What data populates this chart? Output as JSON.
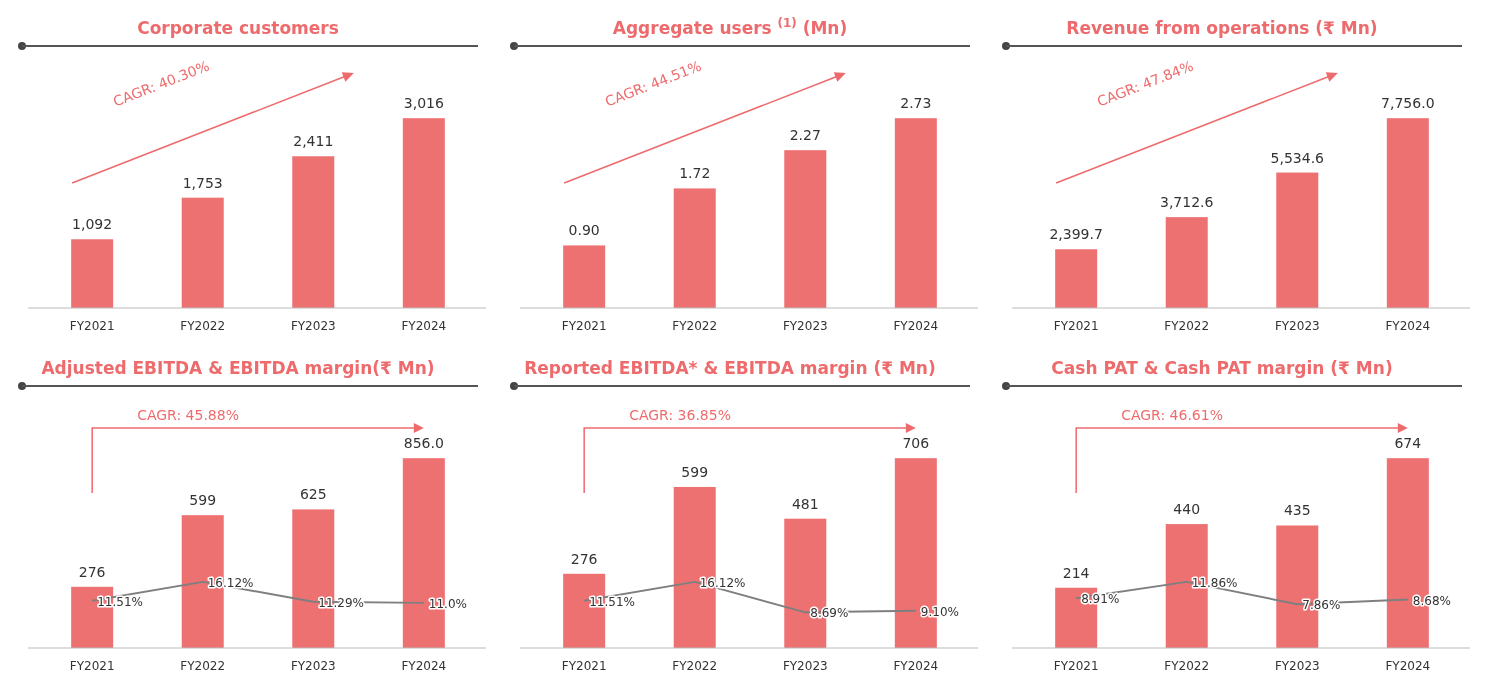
{
  "chart_data": [
    {
      "type": "bar",
      "title": "Corporate customers",
      "categories": [
        "FY2021",
        "FY2022",
        "FY2023",
        "FY2024"
      ],
      "annotations": [
        "CAGR: 40.30%"
      ],
      "series": [
        {
          "color": "#ee7172",
          "values": [
            1092,
            1753,
            2411,
            3016
          ],
          "value_labels": [
            "1,092",
            "1,753",
            "2,411",
            "3,016"
          ]
        }
      ]
    },
    {
      "type": "bar",
      "title": "Aggregate users $^{(1)}$ (Mn)",
      "categories": [
        "FY2021",
        "FY2022",
        "FY2023",
        "FY2024"
      ],
      "annotations": [
        "CAGR: 44.51%"
      ],
      "series": [
        {
          "color": "#ee7172",
          "values": [
            0.9,
            1.72,
            2.27,
            2.73
          ],
          "value_labels": [
            "0.90",
            "1.72",
            "2.27",
            "2.73"
          ]
        }
      ]
    },
    {
      "type": "bar",
      "title": "Revenue from operations (₹ Mn)",
      "categories": [
        "FY2021",
        "FY2022",
        "FY2023",
        "FY2024"
      ],
      "annotations": [
        "CAGR: 47.84%"
      ],
      "series": [
        {
          "color": "#ee7172",
          "values": [
            2399.7,
            3712.6,
            5534.6,
            7756.0
          ],
          "value_labels": [
            "2,399.7",
            "3,712.6",
            "5,534.6",
            "7,756.0"
          ]
        }
      ]
    },
    {
      "type": "bar",
      "title": "Adjusted EBITDA & EBITDA margin(₹ Mn)",
      "categories": [
        "FY2021",
        "FY2022",
        "FY2023",
        "FY2024"
      ],
      "annotations": [
        "CAGR: 45.88%"
      ],
      "series": [
        {
          "color": "#ee7172",
          "values": [
            276,
            599,
            625,
            856.0
          ],
          "value_labels": [
            "276",
            "599",
            "625",
            "856.0"
          ]
        },
        {
          "type": "line",
          "axis": "y2",
          "color": "#7f7f7f",
          "marker": "none",
          "values": [
            11.51,
            16.12,
            11.29,
            11.0
          ],
          "value_labels": [
            "11.51%",
            "16.12%",
            "11.29%",
            "11.0%"
          ]
        }
      ]
    },
    {
      "type": "bar",
      "title": "Reported EBITDA* & EBITDA margin (₹ Mn)",
      "categories": [
        "FY2021",
        "FY2022",
        "FY2023",
        "FY2024"
      ],
      "annotations": [
        "CAGR: 36.85%"
      ],
      "series": [
        {
          "color": "#ee7172",
          "values": [
            276,
            599,
            481,
            706
          ],
          "value_labels": [
            "276",
            "599",
            "481",
            "706"
          ]
        },
        {
          "type": "line",
          "axis": "y2",
          "color": "#7f7f7f",
          "marker": "none",
          "values": [
            11.51,
            16.12,
            8.69,
            9.1
          ],
          "value_labels": [
            "11.51%",
            "16.12%",
            "8.69%",
            "9.10%"
          ]
        }
      ]
    },
    {
      "type": "bar",
      "title": "Cash PAT & Cash PAT margin (₹ Mn)",
      "categories": [
        "FY2021",
        "FY2022",
        "FY2023",
        "FY2024"
      ],
      "annotations": [
        "CAGR: 46.61%"
      ],
      "series": [
        {
          "color": "#ee7172",
          "values": [
            214,
            440,
            435,
            674
          ],
          "value_labels": [
            "214",
            "440",
            "435",
            "674"
          ]
        },
        {
          "type": "line",
          "axis": "y2",
          "color": "#7f7f7f",
          "marker": "none",
          "values": [
            8.91,
            11.86,
            7.86,
            8.68
          ],
          "value_labels": [
            "8.91%",
            "11.86%",
            "7.86%",
            "8.68%"
          ]
        }
      ]
    }
  ]
}
